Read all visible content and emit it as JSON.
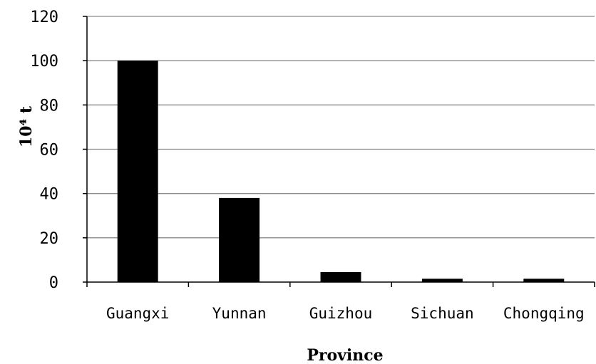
{
  "chart_data": {
    "type": "bar",
    "categories": [
      "Guangxi",
      "Yunnan",
      "Guizhou",
      "Sichuan",
      "Chongqing"
    ],
    "values": [
      100,
      38,
      4.5,
      1.5,
      1.5
    ],
    "title": "",
    "xlabel": "Province",
    "ylabel": "10⁴ t",
    "ylim": [
      0,
      120
    ],
    "yticks": [
      "0",
      "20",
      "40",
      "60",
      "80",
      "100",
      "120"
    ],
    "grid": true,
    "bar_color": "#000000"
  }
}
